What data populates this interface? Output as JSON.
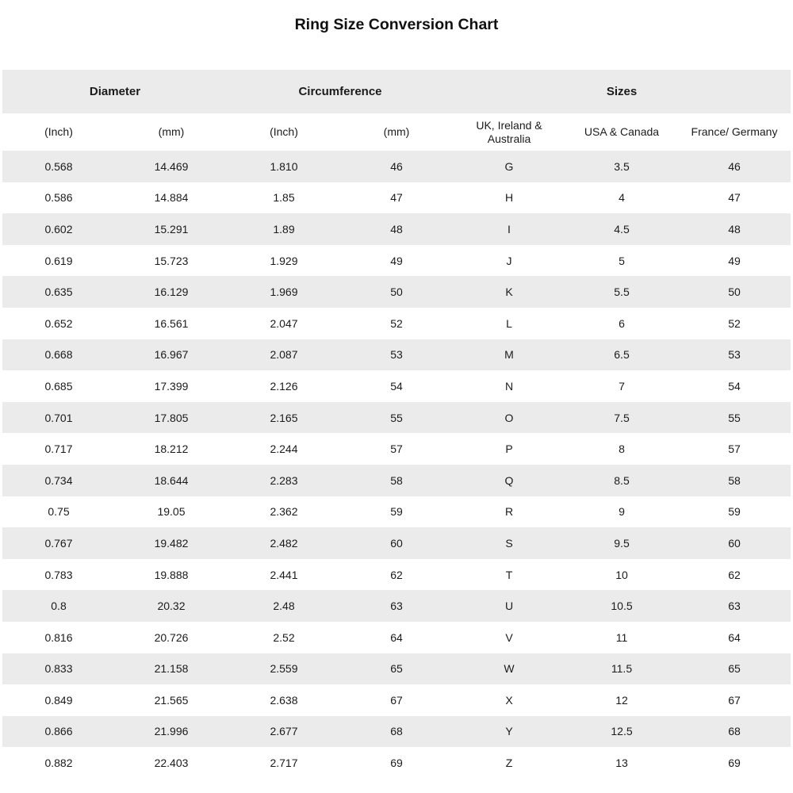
{
  "page_title": "Ring Size Conversion Chart",
  "colors": {
    "stripe": "#ebebeb",
    "background": "#ffffff",
    "text": "#1b1b1b"
  },
  "chart_data": {
    "type": "table",
    "title": "Ring Size Conversion Chart",
    "column_groups": [
      {
        "label": "Diameter",
        "span": 2
      },
      {
        "label": "Circumference",
        "span": 2
      },
      {
        "label": "Sizes",
        "span": 3
      }
    ],
    "columns": [
      "(Inch)",
      "(mm)",
      "(Inch)",
      "(mm)",
      "UK, Ireland & Australia",
      "USA & Canada",
      "France/ Germany"
    ],
    "rows": [
      [
        "0.568",
        "14.469",
        "1.810",
        "46",
        "G",
        "3.5",
        "46"
      ],
      [
        "0.586",
        "14.884",
        "1.85",
        "47",
        "H",
        "4",
        "47"
      ],
      [
        "0.602",
        "15.291",
        "1.89",
        "48",
        "I",
        "4.5",
        "48"
      ],
      [
        "0.619",
        "15.723",
        "1.929",
        "49",
        "J",
        "5",
        "49"
      ],
      [
        "0.635",
        "16.129",
        "1.969",
        "50",
        "K",
        "5.5",
        "50"
      ],
      [
        "0.652",
        "16.561",
        "2.047",
        "52",
        "L",
        "6",
        "52"
      ],
      [
        "0.668",
        "16.967",
        "2.087",
        "53",
        "M",
        "6.5",
        "53"
      ],
      [
        "0.685",
        "17.399",
        "2.126",
        "54",
        "N",
        "7",
        "54"
      ],
      [
        "0.701",
        "17.805",
        "2.165",
        "55",
        "O",
        "7.5",
        "55"
      ],
      [
        "0.717",
        "18.212",
        "2.244",
        "57",
        "P",
        "8",
        "57"
      ],
      [
        "0.734",
        "18.644",
        "2.283",
        "58",
        "Q",
        "8.5",
        "58"
      ],
      [
        "0.75",
        "19.05",
        "2.362",
        "59",
        "R",
        "9",
        "59"
      ],
      [
        "0.767",
        "19.482",
        "2.482",
        "60",
        "S",
        "9.5",
        "60"
      ],
      [
        "0.783",
        "19.888",
        "2.441",
        "62",
        "T",
        "10",
        "62"
      ],
      [
        "0.8",
        "20.32",
        "2.48",
        "63",
        "U",
        "10.5",
        "63"
      ],
      [
        "0.816",
        "20.726",
        "2.52",
        "64",
        "V",
        "11",
        "64"
      ],
      [
        "0.833",
        "21.158",
        "2.559",
        "65",
        "W",
        "11.5",
        "65"
      ],
      [
        "0.849",
        "21.565",
        "2.638",
        "67",
        "X",
        "12",
        "67"
      ],
      [
        "0.866",
        "21.996",
        "2.677",
        "68",
        "Y",
        "12.5",
        "68"
      ],
      [
        "0.882",
        "22.403",
        "2.717",
        "69",
        "Z",
        "13",
        "69"
      ]
    ]
  }
}
